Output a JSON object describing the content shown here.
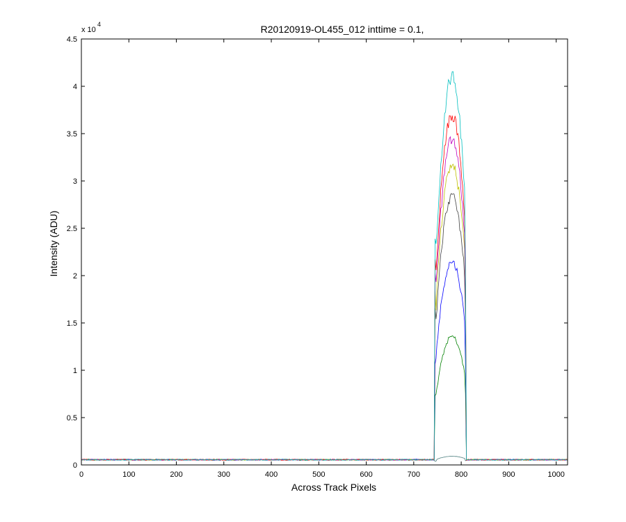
{
  "chart_data": {
    "type": "line",
    "title": "R20120919-OL455_012 inttime = 0.1,",
    "xlabel": "Across Track Pixels",
    "ylabel": "Intensity (ADU)",
    "y_exponent_base": "x 10",
    "y_exponent_power": "4",
    "xlim": [
      0,
      1024
    ],
    "ylim": [
      0,
      4.5
    ],
    "x_ticks": [
      0,
      100,
      200,
      300,
      400,
      500,
      600,
      700,
      800,
      900,
      1000
    ],
    "y_ticks": [
      0,
      0.5,
      1,
      1.5,
      2,
      2.5,
      3,
      3.5,
      4,
      4.5
    ],
    "y_tick_labels": [
      "0",
      "0.5",
      "1",
      "1.5",
      "2",
      "2.5",
      "3",
      "3.5",
      "4",
      "4.5"
    ],
    "grid": false,
    "legend": "none",
    "baseline": 0.055,
    "signal_region": [
      745,
      810
    ],
    "series": [
      {
        "color": "#00bfbf",
        "peak": 4.08
      },
      {
        "color": "#ff0000",
        "peak": 3.68
      },
      {
        "color": "#bf00bf",
        "peak": 3.42
      },
      {
        "color": "#bfbf00",
        "peak": 3.15
      },
      {
        "color": "#404040",
        "peak": 2.82
      },
      {
        "color": "#0000ff",
        "peak": 2.13
      },
      {
        "color": "#008000",
        "peak": 1.34
      },
      {
        "color": "#4d7f7f",
        "peak": 0.075
      }
    ]
  }
}
